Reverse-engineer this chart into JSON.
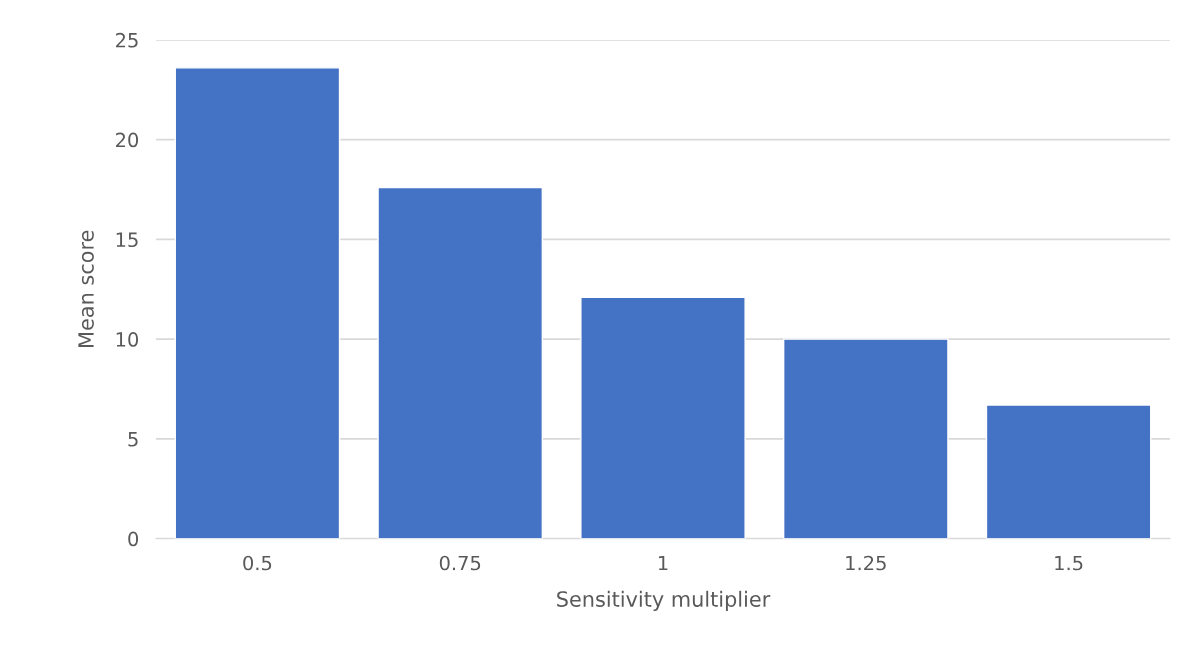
{
  "chart_data": {
    "type": "bar",
    "xlabel": "Sensitivity multiplier",
    "ylabel": "Mean score",
    "categories": [
      "0.5",
      "0.75",
      "1",
      "1.25",
      "1.5"
    ],
    "values": [
      23.6,
      17.6,
      12.1,
      10.0,
      6.7
    ],
    "color": "#4472c4",
    "ylim": [
      0,
      25
    ],
    "yticks": [
      0,
      5,
      10,
      15,
      20,
      25
    ],
    "grid": "y"
  }
}
